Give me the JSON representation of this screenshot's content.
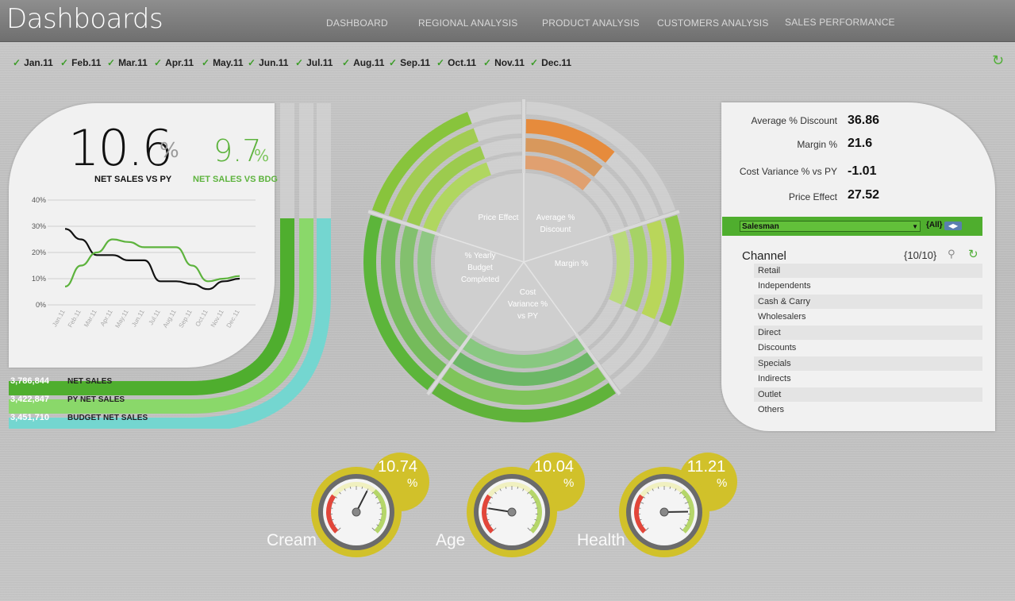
{
  "app": {
    "title": "Dashboards"
  },
  "nav": {
    "items": [
      "DASHBOARD",
      "REGIONAL ANALYSIS",
      "PRODUCT ANALYSIS",
      "CUSTOMERS ANALYSIS",
      "SALES PERFORMANCE"
    ]
  },
  "months": [
    "Jan.11",
    "Feb.11",
    "Mar.11",
    "Apr.11",
    "May.11",
    "Jun.11",
    "Jul.11",
    "Aug.11",
    "Sep.11",
    "Oct.11",
    "Nov.11",
    "Dec.11"
  ],
  "kpis": {
    "net_sales_vs_py": "10.6",
    "net_sales_vs_py_label": "NET SALES VS PY",
    "net_sales_vs_bdg": "9.7",
    "net_sales_vs_bdg_label": "NET SALES VS BDG",
    "pct": "%"
  },
  "chart_data": {
    "type": "line",
    "categories": [
      "Jan.11",
      "Feb.11",
      "Mar.11",
      "Apr.11",
      "May.11",
      "Jun.11",
      "Jul.11",
      "Aug.11",
      "Sep.11",
      "Oct.11",
      "Nov.11",
      "Dec.11"
    ],
    "series": [
      {
        "values": [
          29,
          25,
          19,
          19,
          17,
          17,
          9,
          9,
          8,
          6,
          9,
          10
        ],
        "color": "#111111"
      },
      {
        "values": [
          7,
          15,
          20,
          25,
          24,
          22,
          22,
          22,
          15,
          9,
          10,
          11
        ],
        "color": "#5db33d"
      }
    ],
    "yticks": [
      "0%",
      "10%",
      "20%",
      "30%",
      "40%"
    ],
    "ylim": [
      0,
      40
    ],
    "grid": true
  },
  "totals": [
    {
      "value": "3,786,844",
      "label": "NET SALES",
      "color": "#4fae2e"
    },
    {
      "value": "3,422,847",
      "label": "PY NET SALES",
      "color": "#8ad86a"
    },
    {
      "value": "3,451,710",
      "label": "BUDGET NET SALES",
      "color": "#74d6d0"
    }
  ],
  "radial": {
    "labels": [
      "Price Effect",
      "Average %\nDiscount",
      "Margin %",
      "Cost\nVariance %\nvs PY",
      "% Yearly\nBudget\nCompleted"
    ]
  },
  "metrics": [
    {
      "label": "Average % Discount",
      "value": "36.86"
    },
    {
      "label": "Margin %",
      "value": "21.6"
    },
    {
      "label": "Cost Variance % vs PY",
      "value": "-1.01"
    },
    {
      "label": "Price Effect",
      "value": "27.52"
    }
  ],
  "salesman": {
    "selected": "Salesman",
    "all": "{All}"
  },
  "channel": {
    "title": "Channel",
    "count": "{10/10}",
    "items": [
      "Retail",
      "Independents",
      "Cash & Carry",
      "Wholesalers",
      "Direct",
      "Discounts",
      "Specials",
      "Indirects",
      "Outlet",
      "Others"
    ]
  },
  "gauges": [
    {
      "label": "Cream",
      "value": "10.74",
      "pct": "%",
      "level": 0.6
    },
    {
      "label": "Age",
      "value": "10.04",
      "pct": "%",
      "level": 0.2
    },
    {
      "label": "Health",
      "value": "11.21",
      "pct": "%",
      "level": 0.83
    }
  ]
}
